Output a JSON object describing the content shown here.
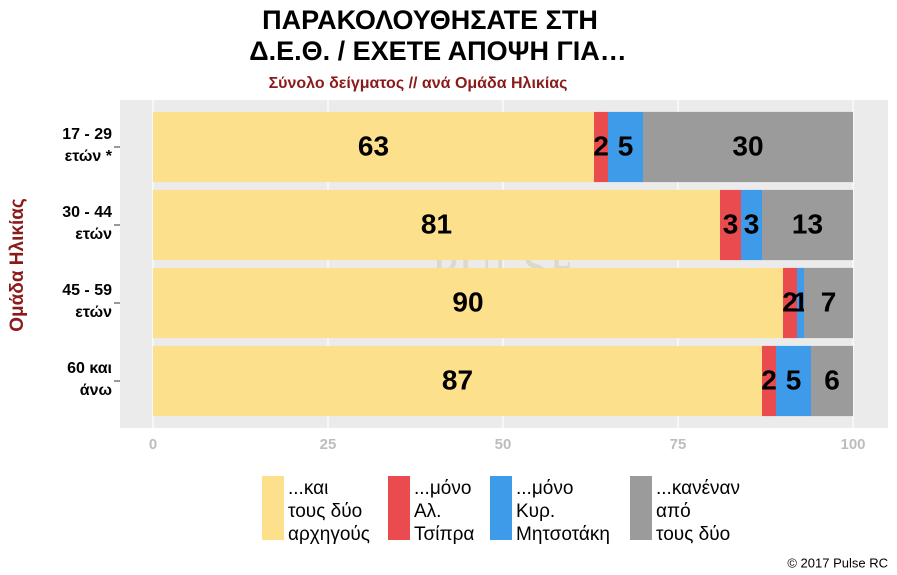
{
  "chart_data": {
    "type": "stacked-barh",
    "title": [
      "ΠΑΡΑΚΟΛΟΥΘΗΣΑΤΕ ΣΤΗ",
      "Δ.Ε.Θ. / ΕΧΕΤΕ ΑΠΟΨΗ ΓΙΑ…"
    ],
    "subtitle": "Σύνολο δείγματος // ανά Ομάδα Ηλικίας",
    "y_label": "Ομάδα Ηλικίας",
    "categories": [
      [
        "17 - 29",
        "ετών *"
      ],
      [
        "30 - 44",
        "ετών"
      ],
      [
        "45 - 59",
        "ετών"
      ],
      [
        "60 και",
        "άνω"
      ]
    ],
    "series": [
      {
        "name": [
          "...και",
          "τους δύο",
          "αρχηγούς"
        ],
        "color": "#fde08b",
        "values": [
          63,
          81,
          90,
          87
        ]
      },
      {
        "name": [
          "...μόνο",
          "Αλ.",
          "Τσίπρα"
        ],
        "color": "#ea4b4e",
        "values": [
          2,
          3,
          2,
          2
        ]
      },
      {
        "name": [
          "...μόνο",
          "Κυρ.",
          "Μητσοτάκη"
        ],
        "color": "#3d9be9",
        "values": [
          5,
          3,
          1,
          5
        ]
      },
      {
        "name": [
          "...κανέναν",
          "από",
          "τους δύο"
        ],
        "color": "#9b9b9b",
        "values": [
          30,
          13,
          7,
          6
        ]
      }
    ],
    "xlim": [
      0,
      100
    ],
    "xticks": [
      0,
      25,
      50,
      75,
      100
    ],
    "watermark": [
      "PULSE",
      "RESEARCH & CONSULTING"
    ],
    "copyright": "© 2017 Pulse RC"
  }
}
